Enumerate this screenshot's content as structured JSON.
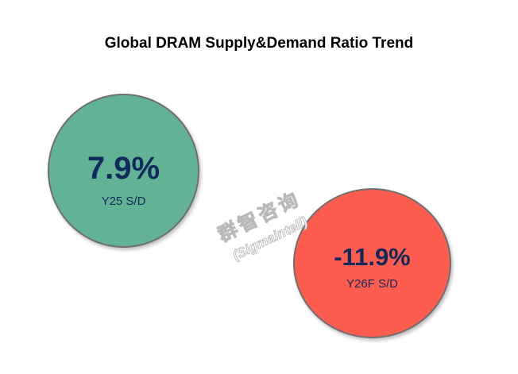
{
  "chart_data": {
    "type": "bubble",
    "title": "Global DRAM Supply&Demand Ratio Trend",
    "points": [
      {
        "label": "Y25 S/D",
        "value": 7.9,
        "display": "7.9%",
        "color": "#62b396"
      },
      {
        "label": "Y26F S/D",
        "value": -11.9,
        "display": "-11.9%",
        "color": "#ff5c50"
      }
    ],
    "legend": "none",
    "grid": false
  },
  "watermark": {
    "line1": "群智咨询",
    "line2": "(Sigmaintell)"
  }
}
